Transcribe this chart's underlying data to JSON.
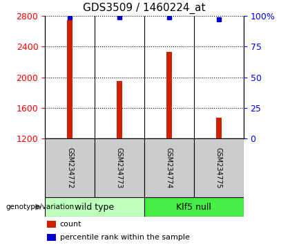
{
  "title": "GDS3509 / 1460224_at",
  "samples": [
    "GSM234772",
    "GSM234773",
    "GSM234774",
    "GSM234775"
  ],
  "counts": [
    2750,
    1950,
    2330,
    1470
  ],
  "percentiles": [
    99,
    99,
    99,
    97
  ],
  "ylim_left": [
    1200,
    2800
  ],
  "ylim_right": [
    0,
    100
  ],
  "yticks_left": [
    1200,
    1600,
    2000,
    2400,
    2800
  ],
  "yticks_right": [
    0,
    25,
    50,
    75,
    100
  ],
  "ytick_labels_right": [
    "0",
    "25",
    "50",
    "75",
    "100%"
  ],
  "bar_color": "#cc2200",
  "dot_color": "#0000cc",
  "groups": [
    {
      "label": "wild type",
      "samples": [
        0,
        1
      ],
      "color": "#bbffbb"
    },
    {
      "label": "Klf5 null",
      "samples": [
        2,
        3
      ],
      "color": "#44ee44"
    }
  ],
  "group_label_prefix": "genotype/variation",
  "sample_box_color": "#cccccc",
  "legend_items": [
    {
      "color": "#cc2200",
      "label": "count"
    },
    {
      "color": "#0000cc",
      "label": "percentile rank within the sample"
    }
  ],
  "title_fontsize": 11,
  "tick_fontsize": 9,
  "bar_width": 0.12
}
